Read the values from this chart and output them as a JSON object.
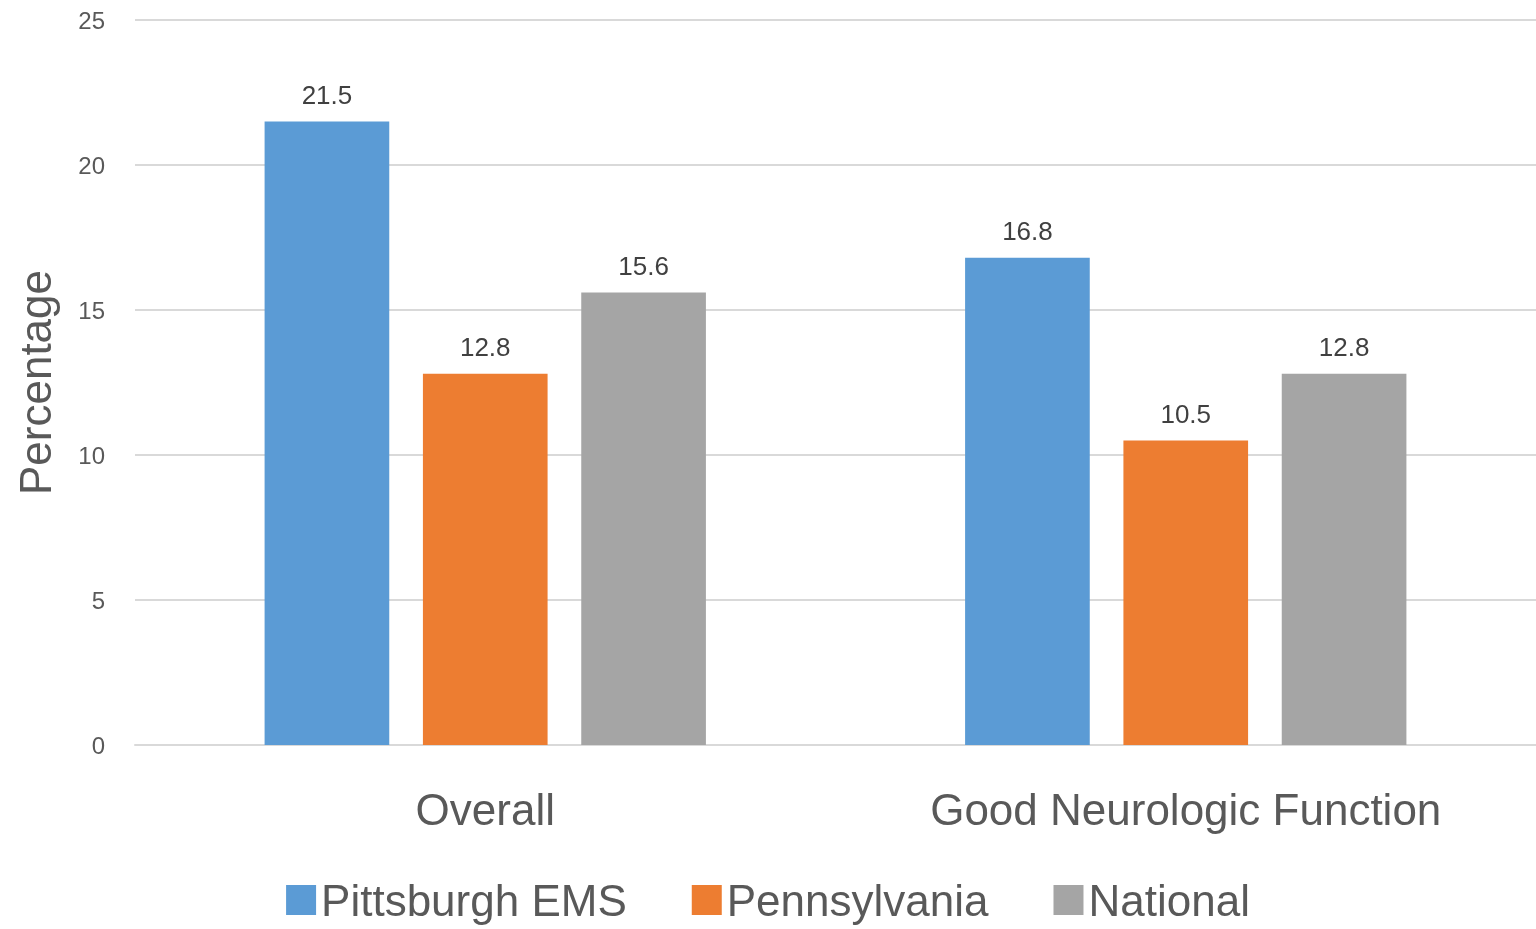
{
  "chart_data": {
    "type": "bar",
    "ylabel": "Percentage",
    "categories": [
      "Overall",
      "Good Neurologic Function"
    ],
    "series": [
      {
        "name": "Pittsburgh EMS",
        "color": "#5b9bd5",
        "values": [
          21.5,
          16.8
        ]
      },
      {
        "name": "Pennsylvania",
        "color": "#ed7d31",
        "values": [
          12.8,
          10.5
        ]
      },
      {
        "name": "National",
        "color": "#a5a5a5",
        "values": [
          15.6,
          12.8
        ]
      }
    ],
    "ylim": [
      0,
      25
    ],
    "yticks": [
      0,
      5,
      10,
      15,
      20,
      25
    ],
    "grid": "y",
    "legend": "bottom",
    "data_labels": true
  }
}
